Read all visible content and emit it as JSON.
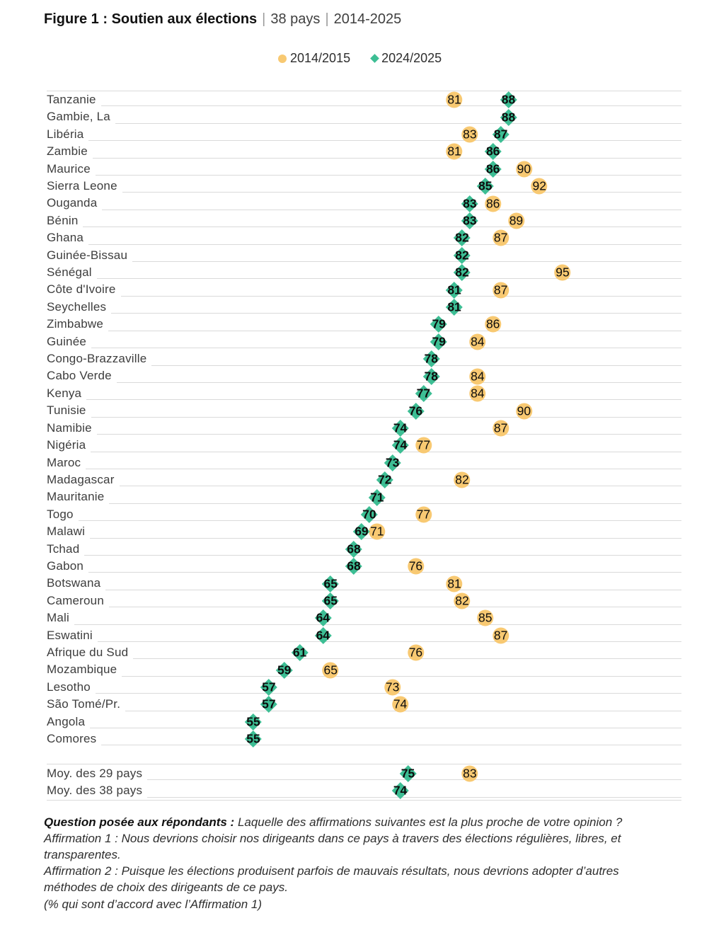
{
  "title": {
    "figure": "Figure 1 : Soutien aux élections",
    "sep": "|",
    "sub1": "38 pays",
    "sub2": "2014-2025"
  },
  "legend": {
    "item_2014": "2014/2015",
    "item_2024": "2024/2025"
  },
  "colors": {
    "c2014": "#F8C972",
    "c2024": "#3DBE94",
    "grid": "#DADADA"
  },
  "chart_data": {
    "type": "scatter",
    "subtype": "dot-plot-two-rounds",
    "title": "Figure 1 : Soutien aux élections | 38 pays | 2014-2025",
    "xlabel": "",
    "ylabel": "",
    "xlim": [
      50,
      100
    ],
    "grid": "row-underlines",
    "legend_position": "top",
    "categories": [
      "Tanzanie",
      "Gambie, La",
      "Libéria",
      "Zambie",
      "Maurice",
      "Sierra Leone",
      "Ouganda",
      "Bénin",
      "Ghana",
      "Guinée-Bissau",
      "Sénégal",
      "Côte d'Ivoire",
      "Seychelles",
      "Zimbabwe",
      "Guinée",
      "Congo-Brazzaville",
      "Cabo Verde",
      "Kenya",
      "Tunisie",
      "Namibie",
      "Nigéria",
      "Maroc",
      "Madagascar",
      "Mauritanie",
      "Togo",
      "Malawi",
      "Tchad",
      "Gabon",
      "Botswana",
      "Cameroun",
      "Mali",
      "Eswatini",
      "Afrique du Sud",
      "Mozambique",
      "Lesotho",
      "São Tomé/Pr.",
      "Angola",
      "Comores"
    ],
    "series": [
      {
        "name": "2014/2015",
        "marker": "circle",
        "color": "#F8C972",
        "values": [
          81,
          null,
          83,
          81,
          90,
          92,
          86,
          89,
          87,
          null,
          95,
          87,
          null,
          86,
          84,
          null,
          84,
          84,
          90,
          87,
          77,
          null,
          82,
          null,
          77,
          71,
          null,
          76,
          81,
          82,
          85,
          87,
          76,
          65,
          73,
          74,
          null,
          null
        ]
      },
      {
        "name": "2024/2025",
        "marker": "diamond",
        "color": "#3DBE94",
        "values": [
          88,
          88,
          87,
          86,
          86,
          85,
          83,
          83,
          82,
          82,
          82,
          81,
          81,
          79,
          79,
          78,
          78,
          77,
          76,
          74,
          74,
          73,
          72,
          71,
          70,
          69,
          68,
          68,
          65,
          65,
          64,
          64,
          61,
          59,
          57,
          57,
          55,
          55
        ]
      }
    ],
    "averages": [
      {
        "label": "Moy. des 29 pays",
        "v2014": 83,
        "v2024": 75
      },
      {
        "label": "Moy. des 38 pays",
        "v2014": null,
        "v2024": 74
      }
    ]
  },
  "footnote": {
    "lead": "Question posée aux répondants :",
    "question": " Laquelle des affirmations suivantes est la plus proche de votre opinion ?",
    "affirmation1": "Affirmation 1 : Nous devrions choisir nos dirigeants dans ce pays à travers des élections régulières, libres, et transparentes.",
    "affirmation2": "Affirmation 2 : Puisque les élections produisent parfois de mauvais résultats, nous devrions adopter d’autres méthodes de choix des dirigeants de ce pays.",
    "note": "(% qui sont d’accord avec l’Affirmation 1)"
  }
}
